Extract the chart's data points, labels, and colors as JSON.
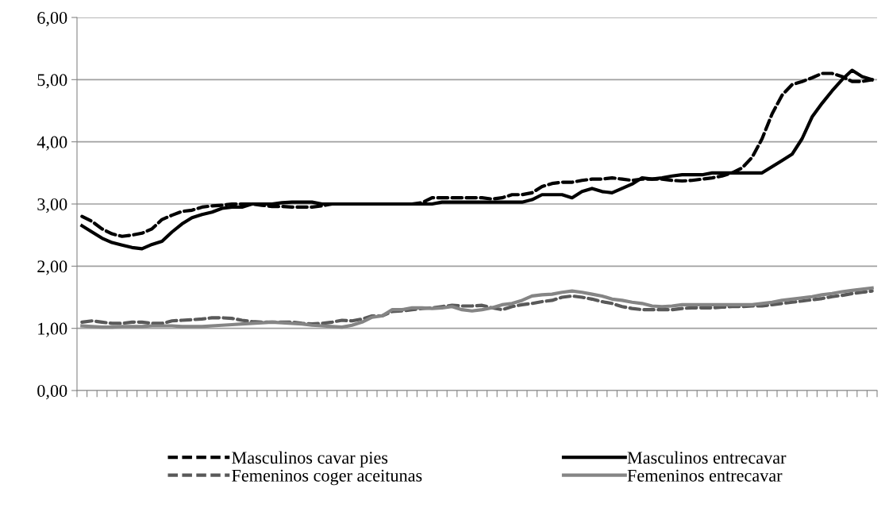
{
  "chart_data": {
    "type": "line",
    "categories": [
      null,
      null,
      null,
      null,
      null,
      null,
      null,
      null,
      null,
      null,
      null,
      null,
      null,
      null,
      null,
      null,
      null,
      null,
      null,
      null,
      null,
      null,
      null,
      null,
      null,
      null,
      null,
      null,
      null,
      null,
      null,
      null,
      null,
      null,
      null,
      null,
      null,
      null,
      null,
      null,
      null,
      null,
      null,
      null,
      null,
      null,
      null,
      null,
      null,
      null,
      null,
      null,
      null,
      null,
      null,
      null,
      null,
      null,
      null,
      null,
      null,
      null,
      null,
      null,
      null,
      null,
      null,
      null,
      null,
      null,
      null,
      null,
      null,
      null,
      null,
      null,
      null,
      null,
      null,
      null
    ],
    "series": [
      {
        "name": "Masculinos cavar pies",
        "color": "#000000",
        "line_style": "dashed",
        "values": [
          2.8,
          2.72,
          2.6,
          2.52,
          2.48,
          2.5,
          2.53,
          2.6,
          2.75,
          2.82,
          2.88,
          2.9,
          2.95,
          2.97,
          2.98,
          3.0,
          3.0,
          3.0,
          2.98,
          2.96,
          2.96,
          2.95,
          2.95,
          2.95,
          2.97,
          3.0,
          3.0,
          3.0,
          3.0,
          3.0,
          3.0,
          3.0,
          3.0,
          3.0,
          3.02,
          3.1,
          3.1,
          3.1,
          3.1,
          3.1,
          3.1,
          3.08,
          3.1,
          3.15,
          3.15,
          3.18,
          3.28,
          3.33,
          3.35,
          3.35,
          3.38,
          3.4,
          3.4,
          3.42,
          3.4,
          3.38,
          3.4,
          3.4,
          3.4,
          3.38,
          3.37,
          3.38,
          3.4,
          3.42,
          3.45,
          3.5,
          3.58,
          3.75,
          4.05,
          4.45,
          4.75,
          4.92,
          4.97,
          5.03,
          5.1,
          5.1,
          5.05,
          4.97,
          4.97,
          5.0
        ]
      },
      {
        "name": "Femeninos coger aceitunas",
        "color": "#595959",
        "line_style": "dashed",
        "values": [
          1.1,
          1.12,
          1.1,
          1.08,
          1.08,
          1.1,
          1.1,
          1.08,
          1.08,
          1.12,
          1.13,
          1.14,
          1.15,
          1.17,
          1.17,
          1.16,
          1.13,
          1.11,
          1.1,
          1.1,
          1.1,
          1.1,
          1.08,
          1.07,
          1.08,
          1.1,
          1.13,
          1.12,
          1.15,
          1.2,
          1.2,
          1.27,
          1.28,
          1.3,
          1.32,
          1.33,
          1.35,
          1.37,
          1.36,
          1.36,
          1.37,
          1.33,
          1.3,
          1.35,
          1.38,
          1.4,
          1.43,
          1.45,
          1.5,
          1.52,
          1.5,
          1.47,
          1.43,
          1.4,
          1.35,
          1.32,
          1.3,
          1.3,
          1.3,
          1.3,
          1.32,
          1.33,
          1.33,
          1.33,
          1.34,
          1.35,
          1.35,
          1.36,
          1.36,
          1.38,
          1.4,
          1.42,
          1.44,
          1.46,
          1.48,
          1.51,
          1.53,
          1.56,
          1.58,
          1.6
        ]
      },
      {
        "name": "Masculinos entrecavar",
        "color": "#000000",
        "line_style": "solid",
        "values": [
          2.65,
          2.55,
          2.45,
          2.38,
          2.34,
          2.3,
          2.28,
          2.35,
          2.4,
          2.55,
          2.68,
          2.78,
          2.83,
          2.87,
          2.93,
          2.95,
          2.95,
          3.0,
          3.0,
          3.0,
          3.02,
          3.03,
          3.03,
          3.03,
          3.0,
          3.0,
          3.0,
          3.0,
          3.0,
          3.0,
          3.0,
          3.0,
          3.0,
          3.0,
          3.0,
          3.0,
          3.03,
          3.03,
          3.03,
          3.03,
          3.03,
          3.03,
          3.03,
          3.03,
          3.03,
          3.07,
          3.15,
          3.15,
          3.15,
          3.1,
          3.2,
          3.25,
          3.2,
          3.18,
          3.25,
          3.32,
          3.42,
          3.4,
          3.42,
          3.45,
          3.47,
          3.47,
          3.47,
          3.5,
          3.5,
          3.5,
          3.5,
          3.5,
          3.5,
          3.6,
          3.7,
          3.8,
          4.05,
          4.4,
          4.62,
          4.82,
          5.0,
          5.15,
          5.05,
          5.0
        ]
      },
      {
        "name": "Femeninos entrecavar",
        "color": "#858585",
        "line_style": "solid",
        "values": [
          1.04,
          1.03,
          1.02,
          1.02,
          1.03,
          1.03,
          1.03,
          1.04,
          1.04,
          1.04,
          1.03,
          1.03,
          1.03,
          1.04,
          1.05,
          1.06,
          1.07,
          1.08,
          1.09,
          1.1,
          1.09,
          1.08,
          1.07,
          1.05,
          1.04,
          1.03,
          1.02,
          1.05,
          1.1,
          1.18,
          1.2,
          1.3,
          1.3,
          1.33,
          1.33,
          1.32,
          1.33,
          1.35,
          1.3,
          1.28,
          1.3,
          1.33,
          1.38,
          1.4,
          1.45,
          1.52,
          1.54,
          1.55,
          1.58,
          1.6,
          1.58,
          1.55,
          1.52,
          1.47,
          1.45,
          1.42,
          1.4,
          1.36,
          1.35,
          1.36,
          1.38,
          1.38,
          1.38,
          1.38,
          1.38,
          1.38,
          1.38,
          1.38,
          1.4,
          1.42,
          1.45,
          1.47,
          1.49,
          1.51,
          1.54,
          1.56,
          1.59,
          1.61,
          1.63,
          1.65
        ]
      }
    ],
    "ylim": [
      0,
      6
    ],
    "yticks": [
      {
        "value": 0,
        "label": "0,00"
      },
      {
        "value": 1,
        "label": "1,00"
      },
      {
        "value": 2,
        "label": "2,00"
      },
      {
        "value": 3,
        "label": "3,00"
      },
      {
        "value": 4,
        "label": "4,00"
      },
      {
        "value": 5,
        "label": "5,00"
      },
      {
        "value": 6,
        "label": "6,00"
      }
    ],
    "grid": "y",
    "legend": "bottom",
    "marker": "none"
  }
}
